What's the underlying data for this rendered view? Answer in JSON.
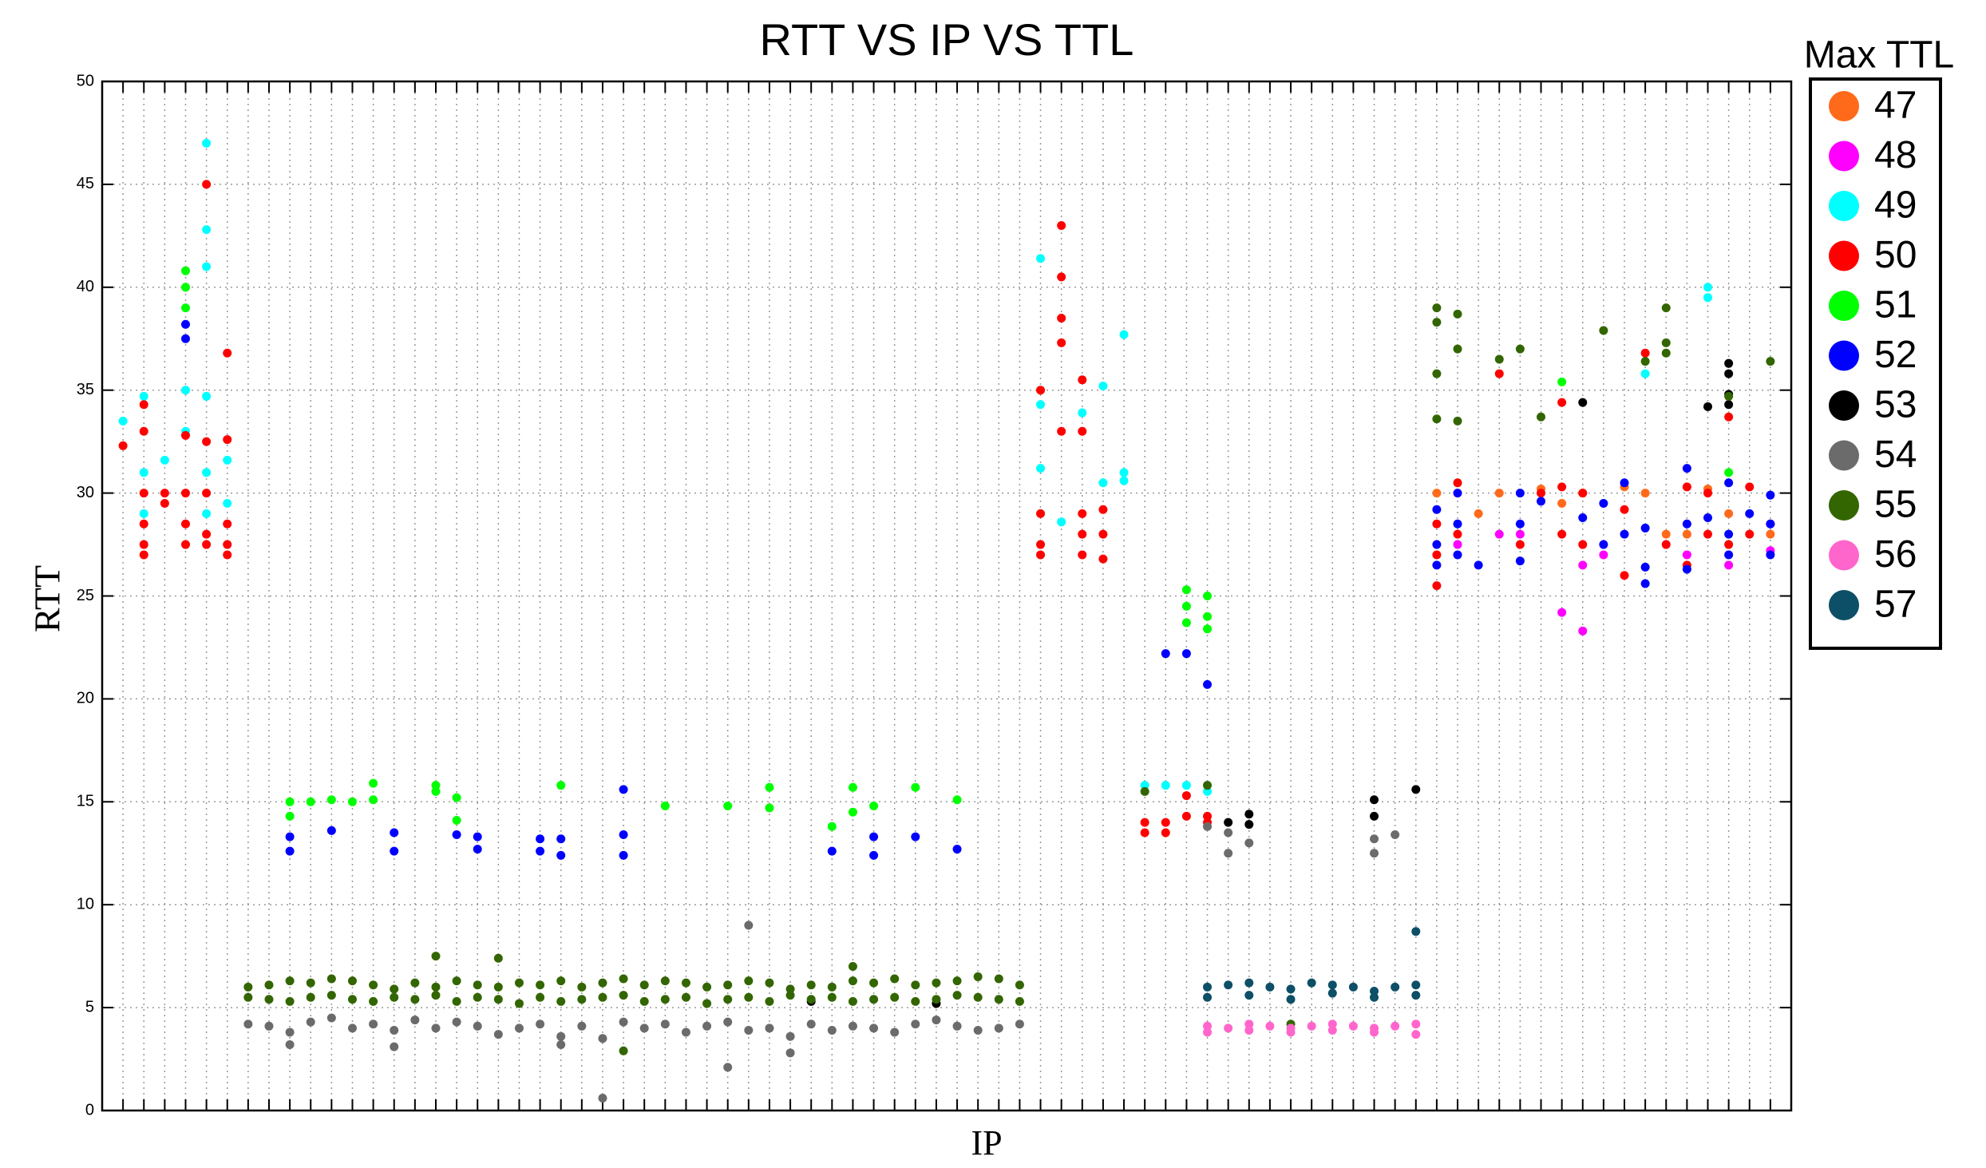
{
  "chart_data": {
    "type": "scatter",
    "title": "RTT VS IP VS TTL",
    "x_label": "IP",
    "y_label": "RTT",
    "legend_title": "Max TTL",
    "legend": "outside-right",
    "grid": true,
    "xlim": [
      0,
      81
    ],
    "ylim": [
      0,
      50
    ],
    "yticks": [
      0,
      5,
      10,
      15,
      20,
      25,
      30,
      35,
      40,
      45,
      50
    ],
    "series": [
      {
        "name": "47",
        "color": "#ff6a1a",
        "x": [
          64,
          66,
          67,
          69,
          70,
          71,
          73,
          74,
          75,
          76,
          77,
          78,
          80
        ],
        "values": [
          30,
          29,
          30,
          30.2,
          29.5,
          30,
          30.3,
          30,
          28,
          28,
          30.2,
          29,
          28
        ]
      },
      {
        "name": "48",
        "color": "#ff00ff",
        "x": [
          65,
          67,
          68,
          70,
          71,
          71,
          72,
          76,
          78,
          80
        ],
        "values": [
          27.5,
          28,
          28,
          24.2,
          23.3,
          26.5,
          27,
          27,
          26.5,
          27.2
        ]
      },
      {
        "name": "49",
        "color": "#00ffff",
        "x": [
          1,
          2,
          2,
          2,
          3,
          4,
          4,
          5,
          5,
          5,
          5,
          5,
          5,
          6,
          6,
          45,
          45,
          45,
          46,
          47,
          48,
          48,
          49,
          49,
          49,
          50,
          51,
          52,
          53,
          74,
          77,
          77
        ],
        "values": [
          33.5,
          34.7,
          31,
          29,
          31.6,
          35,
          33,
          47,
          42.8,
          41,
          34.7,
          31,
          29,
          31.6,
          29.5,
          41.4,
          34.3,
          31.2,
          28.6,
          33.9,
          35.2,
          30.5,
          37.7,
          31,
          30.6,
          15.8,
          15.8,
          15.8,
          15.5,
          35.8,
          40,
          39.5
        ]
      },
      {
        "name": "50",
        "color": "#ff0000",
        "x": [
          1,
          2,
          2,
          2,
          2,
          2,
          2,
          3,
          3,
          4,
          4,
          4,
          4,
          5,
          5,
          5,
          5,
          5,
          6,
          6,
          6,
          6,
          6,
          45,
          45,
          45,
          45,
          46,
          46,
          46,
          46,
          46,
          47,
          47,
          47,
          47,
          47,
          48,
          48,
          48,
          50,
          50,
          51,
          51,
          52,
          52,
          53,
          53,
          64,
          64,
          64,
          65,
          65,
          67,
          68,
          69,
          70,
          70,
          70,
          71,
          71,
          73,
          73,
          74,
          75,
          76,
          76,
          77,
          77,
          78,
          78,
          79,
          79,
          80
        ],
        "values": [
          32.3,
          34.3,
          33,
          30,
          28.5,
          27.5,
          27,
          30,
          29.5,
          32.8,
          30,
          28.5,
          27.5,
          45,
          32.5,
          30,
          28,
          27.5,
          36.8,
          32.6,
          28.5,
          27.5,
          27,
          35,
          29,
          27.5,
          27,
          43,
          40.5,
          38.5,
          37.3,
          33,
          35.5,
          33,
          29,
          28,
          27,
          29.2,
          28,
          26.8,
          14,
          13.5,
          14,
          13.5,
          15.3,
          14.3,
          14.3,
          14,
          25.5,
          27,
          28.5,
          30.5,
          28,
          35.8,
          27.5,
          30,
          34.4,
          30.3,
          28,
          30,
          27.5,
          29.2,
          26,
          36.8,
          27.5,
          30.3,
          26.5,
          30,
          28,
          33.7,
          27.5,
          30.3,
          28,
          28.5
        ]
      },
      {
        "name": "51",
        "color": "#00ff00",
        "x": [
          4,
          4,
          4,
          9,
          9,
          10,
          11,
          12,
          13,
          13,
          16,
          16,
          17,
          17,
          22,
          27,
          30,
          32,
          32,
          35,
          36,
          36,
          37,
          39,
          41,
          52,
          52,
          52,
          53,
          53,
          53,
          70,
          78
        ],
        "values": [
          40.8,
          40,
          39,
          15,
          14.3,
          15,
          15.1,
          15,
          15.9,
          15.1,
          15.8,
          15.5,
          15.2,
          14.1,
          15.8,
          14.8,
          14.8,
          15.7,
          14.7,
          13.8,
          15.7,
          14.5,
          14.8,
          15.7,
          15.1,
          25.3,
          24.5,
          23.7,
          25,
          24,
          23.4,
          35.4,
          31
        ]
      },
      {
        "name": "52",
        "color": "#0000ff",
        "x": [
          4,
          4,
          9,
          9,
          11,
          14,
          14,
          17,
          18,
          18,
          21,
          21,
          22,
          22,
          25,
          25,
          25,
          35,
          37,
          37,
          39,
          41,
          51,
          52,
          53,
          64,
          64,
          64,
          65,
          65,
          65,
          66,
          68,
          68,
          68,
          69,
          71,
          72,
          72,
          73,
          73,
          74,
          74,
          74,
          76,
          76,
          76,
          77,
          78,
          78,
          78,
          79,
          80,
          80,
          80
        ],
        "values": [
          38.2,
          37.5,
          13.3,
          12.6,
          13.6,
          13.5,
          12.6,
          13.4,
          13.3,
          12.7,
          13.2,
          12.6,
          13.2,
          12.4,
          15.6,
          13.4,
          12.4,
          12.6,
          13.3,
          12.4,
          13.3,
          12.7,
          22.2,
          22.2,
          20.7,
          29.2,
          27.5,
          26.5,
          30,
          28.5,
          27,
          26.5,
          30,
          28.5,
          26.7,
          29.6,
          28.8,
          29.5,
          27.5,
          30.5,
          28,
          28.3,
          26.4,
          25.6,
          31.2,
          28.5,
          26.3,
          28.8,
          30.5,
          28,
          27,
          29,
          29.9,
          28.5,
          27
        ]
      },
      {
        "name": "53",
        "color": "#000000",
        "x": [
          54,
          55,
          55,
          61,
          61,
          63,
          71,
          77,
          78,
          78,
          78,
          78,
          40,
          34
        ],
        "values": [
          14,
          14.4,
          13.9,
          14.3,
          15.1,
          15.6,
          34.4,
          34.2,
          36.3,
          35.8,
          34.8,
          34.3,
          5.2,
          5.3
        ]
      },
      {
        "name": "54",
        "color": "#6b6b6b",
        "x": [
          7,
          8,
          9,
          10,
          11,
          12,
          13,
          14,
          15,
          16,
          17,
          18,
          19,
          20,
          21,
          22,
          23,
          24,
          25,
          26,
          27,
          28,
          29,
          30,
          31,
          32,
          33,
          34,
          35,
          36,
          37,
          38,
          39,
          40,
          41,
          42,
          43,
          44,
          24,
          31,
          30,
          9,
          14,
          22,
          33,
          54,
          54,
          55,
          61,
          61,
          62,
          53
        ],
        "values": [
          4.2,
          4.1,
          3.8,
          4.3,
          4.5,
          4,
          4.2,
          3.9,
          4.4,
          4,
          4.3,
          4.1,
          3.7,
          4,
          4.2,
          3.6,
          4.1,
          3.5,
          4.3,
          4,
          4.2,
          3.8,
          4.1,
          4.3,
          3.9,
          4,
          3.6,
          4.2,
          3.9,
          4.1,
          4,
          3.8,
          4.2,
          4.4,
          4.1,
          3.9,
          4,
          4.2,
          0.6,
          9,
          2.1,
          3.2,
          3.1,
          3.2,
          2.8,
          13.5,
          12.5,
          13,
          13.2,
          12.5,
          13.4,
          13.8
        ]
      },
      {
        "name": "55",
        "color": "#336600",
        "x": [
          7,
          8,
          9,
          10,
          11,
          12,
          13,
          14,
          15,
          16,
          17,
          18,
          19,
          20,
          21,
          22,
          23,
          24,
          25,
          26,
          27,
          28,
          29,
          30,
          31,
          32,
          33,
          34,
          35,
          36,
          37,
          38,
          39,
          40,
          41,
          42,
          43,
          44,
          7,
          8,
          9,
          10,
          11,
          12,
          13,
          14,
          15,
          16,
          17,
          18,
          19,
          20,
          21,
          22,
          23,
          24,
          25,
          26,
          27,
          28,
          29,
          30,
          31,
          32,
          33,
          34,
          35,
          36,
          37,
          38,
          39,
          40,
          41,
          42,
          43,
          44,
          16,
          19,
          36,
          25,
          64,
          64,
          64,
          64,
          65,
          65,
          65,
          67,
          68,
          69,
          72,
          74,
          75,
          75,
          75,
          78,
          80,
          53,
          50,
          57
        ],
        "values": [
          6,
          6.1,
          6.3,
          6.2,
          6.4,
          6.3,
          6.1,
          5.9,
          6.2,
          6,
          6.3,
          6.1,
          6,
          6.2,
          6.1,
          6.3,
          6,
          6.2,
          6.4,
          6.1,
          6.3,
          6.2,
          6,
          6.1,
          6.3,
          6.2,
          5.9,
          6.1,
          6,
          6.3,
          6.2,
          6.4,
          6.1,
          6.2,
          6.3,
          6.5,
          6.4,
          6.1,
          5.5,
          5.4,
          5.3,
          5.5,
          5.6,
          5.4,
          5.3,
          5.5,
          5.4,
          5.6,
          5.3,
          5.5,
          5.4,
          5.2,
          5.5,
          5.3,
          5.4,
          5.5,
          5.6,
          5.3,
          5.4,
          5.5,
          5.2,
          5.4,
          5.5,
          5.3,
          5.6,
          5.4,
          5.5,
          5.3,
          5.4,
          5.5,
          5.3,
          5.4,
          5.6,
          5.5,
          5.4,
          5.3,
          7.5,
          7.4,
          7,
          2.9,
          39,
          38.3,
          35.8,
          33.6,
          38.7,
          37,
          33.5,
          36.5,
          37,
          33.7,
          37.9,
          36.4,
          39,
          37.3,
          36.8,
          34.7,
          36.4,
          15.8,
          15.5,
          4.2
        ]
      },
      {
        "name": "56",
        "color": "#ff66cc",
        "x": [
          53,
          54,
          55,
          56,
          57,
          58,
          59,
          60,
          61,
          62,
          63,
          53,
          55,
          57,
          59,
          61,
          63
        ],
        "values": [
          4.1,
          4,
          4.2,
          4.1,
          4,
          4.1,
          4.2,
          4.1,
          4,
          4.1,
          4.2,
          3.8,
          3.9,
          3.8,
          3.9,
          3.8,
          3.7
        ]
      },
      {
        "name": "57",
        "color": "#0d4f66",
        "x": [
          53,
          54,
          55,
          56,
          57,
          58,
          59,
          60,
          61,
          62,
          63,
          53,
          55,
          57,
          59,
          61,
          63,
          63
        ],
        "values": [
          6,
          6.1,
          6.2,
          6,
          5.9,
          6.2,
          6.1,
          6,
          5.8,
          6,
          6.1,
          5.5,
          5.6,
          5.4,
          5.7,
          5.5,
          5.6,
          8.7
        ]
      }
    ]
  }
}
